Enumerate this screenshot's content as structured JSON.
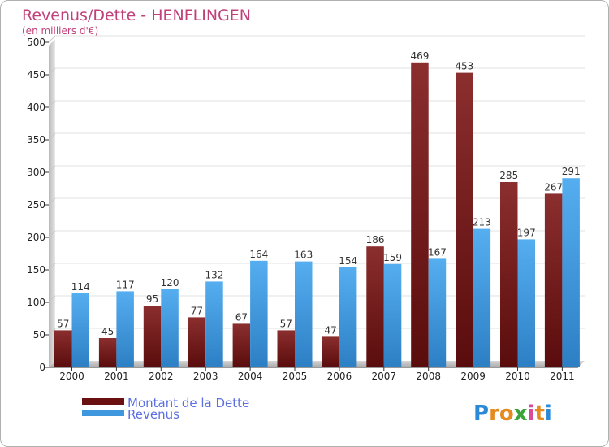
{
  "chart_data": {
    "type": "bar",
    "title": "Revenus/Dette - HENFLINGEN",
    "subtitle": "(en milliers d'€)",
    "categories": [
      "2000",
      "2001",
      "2002",
      "2003",
      "2004",
      "2005",
      "2006",
      "2007",
      "2008",
      "2009",
      "2010",
      "2011"
    ],
    "series": [
      {
        "name": "Montant de la Dette",
        "color": "#7a1a1a",
        "values": [
          57,
          45,
          95,
          77,
          67,
          57,
          47,
          186,
          469,
          453,
          285,
          267
        ]
      },
      {
        "name": "Revenus",
        "color": "#3f97de",
        "values": [
          114,
          117,
          120,
          132,
          164,
          163,
          154,
          159,
          167,
          213,
          197,
          291
        ]
      }
    ],
    "ylim": [
      0,
      500
    ],
    "yticks": [
      0,
      50,
      100,
      150,
      200,
      250,
      300,
      350,
      400,
      450,
      500
    ],
    "grid": true,
    "legend_position": "bottom-left"
  },
  "logo": {
    "letters": [
      "P",
      "r",
      "o",
      "x",
      "i",
      "t",
      "i"
    ],
    "colors": [
      "#2a8ad8",
      "#e58a1f",
      "#e58a1f",
      "#3aa43a",
      "#d64b9a",
      "#e58a1f",
      "#2a8ad8"
    ]
  }
}
